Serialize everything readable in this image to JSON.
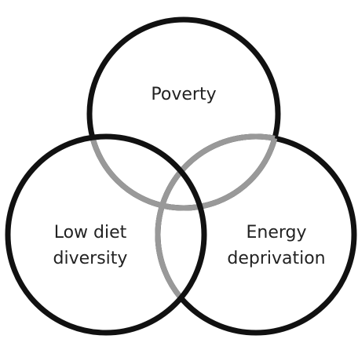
{
  "nodes": [
    {
      "lines": [
        "Poverty"
      ]
    },
    {
      "lines": [
        "Low diet",
        "diversity"
      ]
    },
    {
      "lines": [
        "Energy",
        "deprivation"
      ]
    }
  ]
}
